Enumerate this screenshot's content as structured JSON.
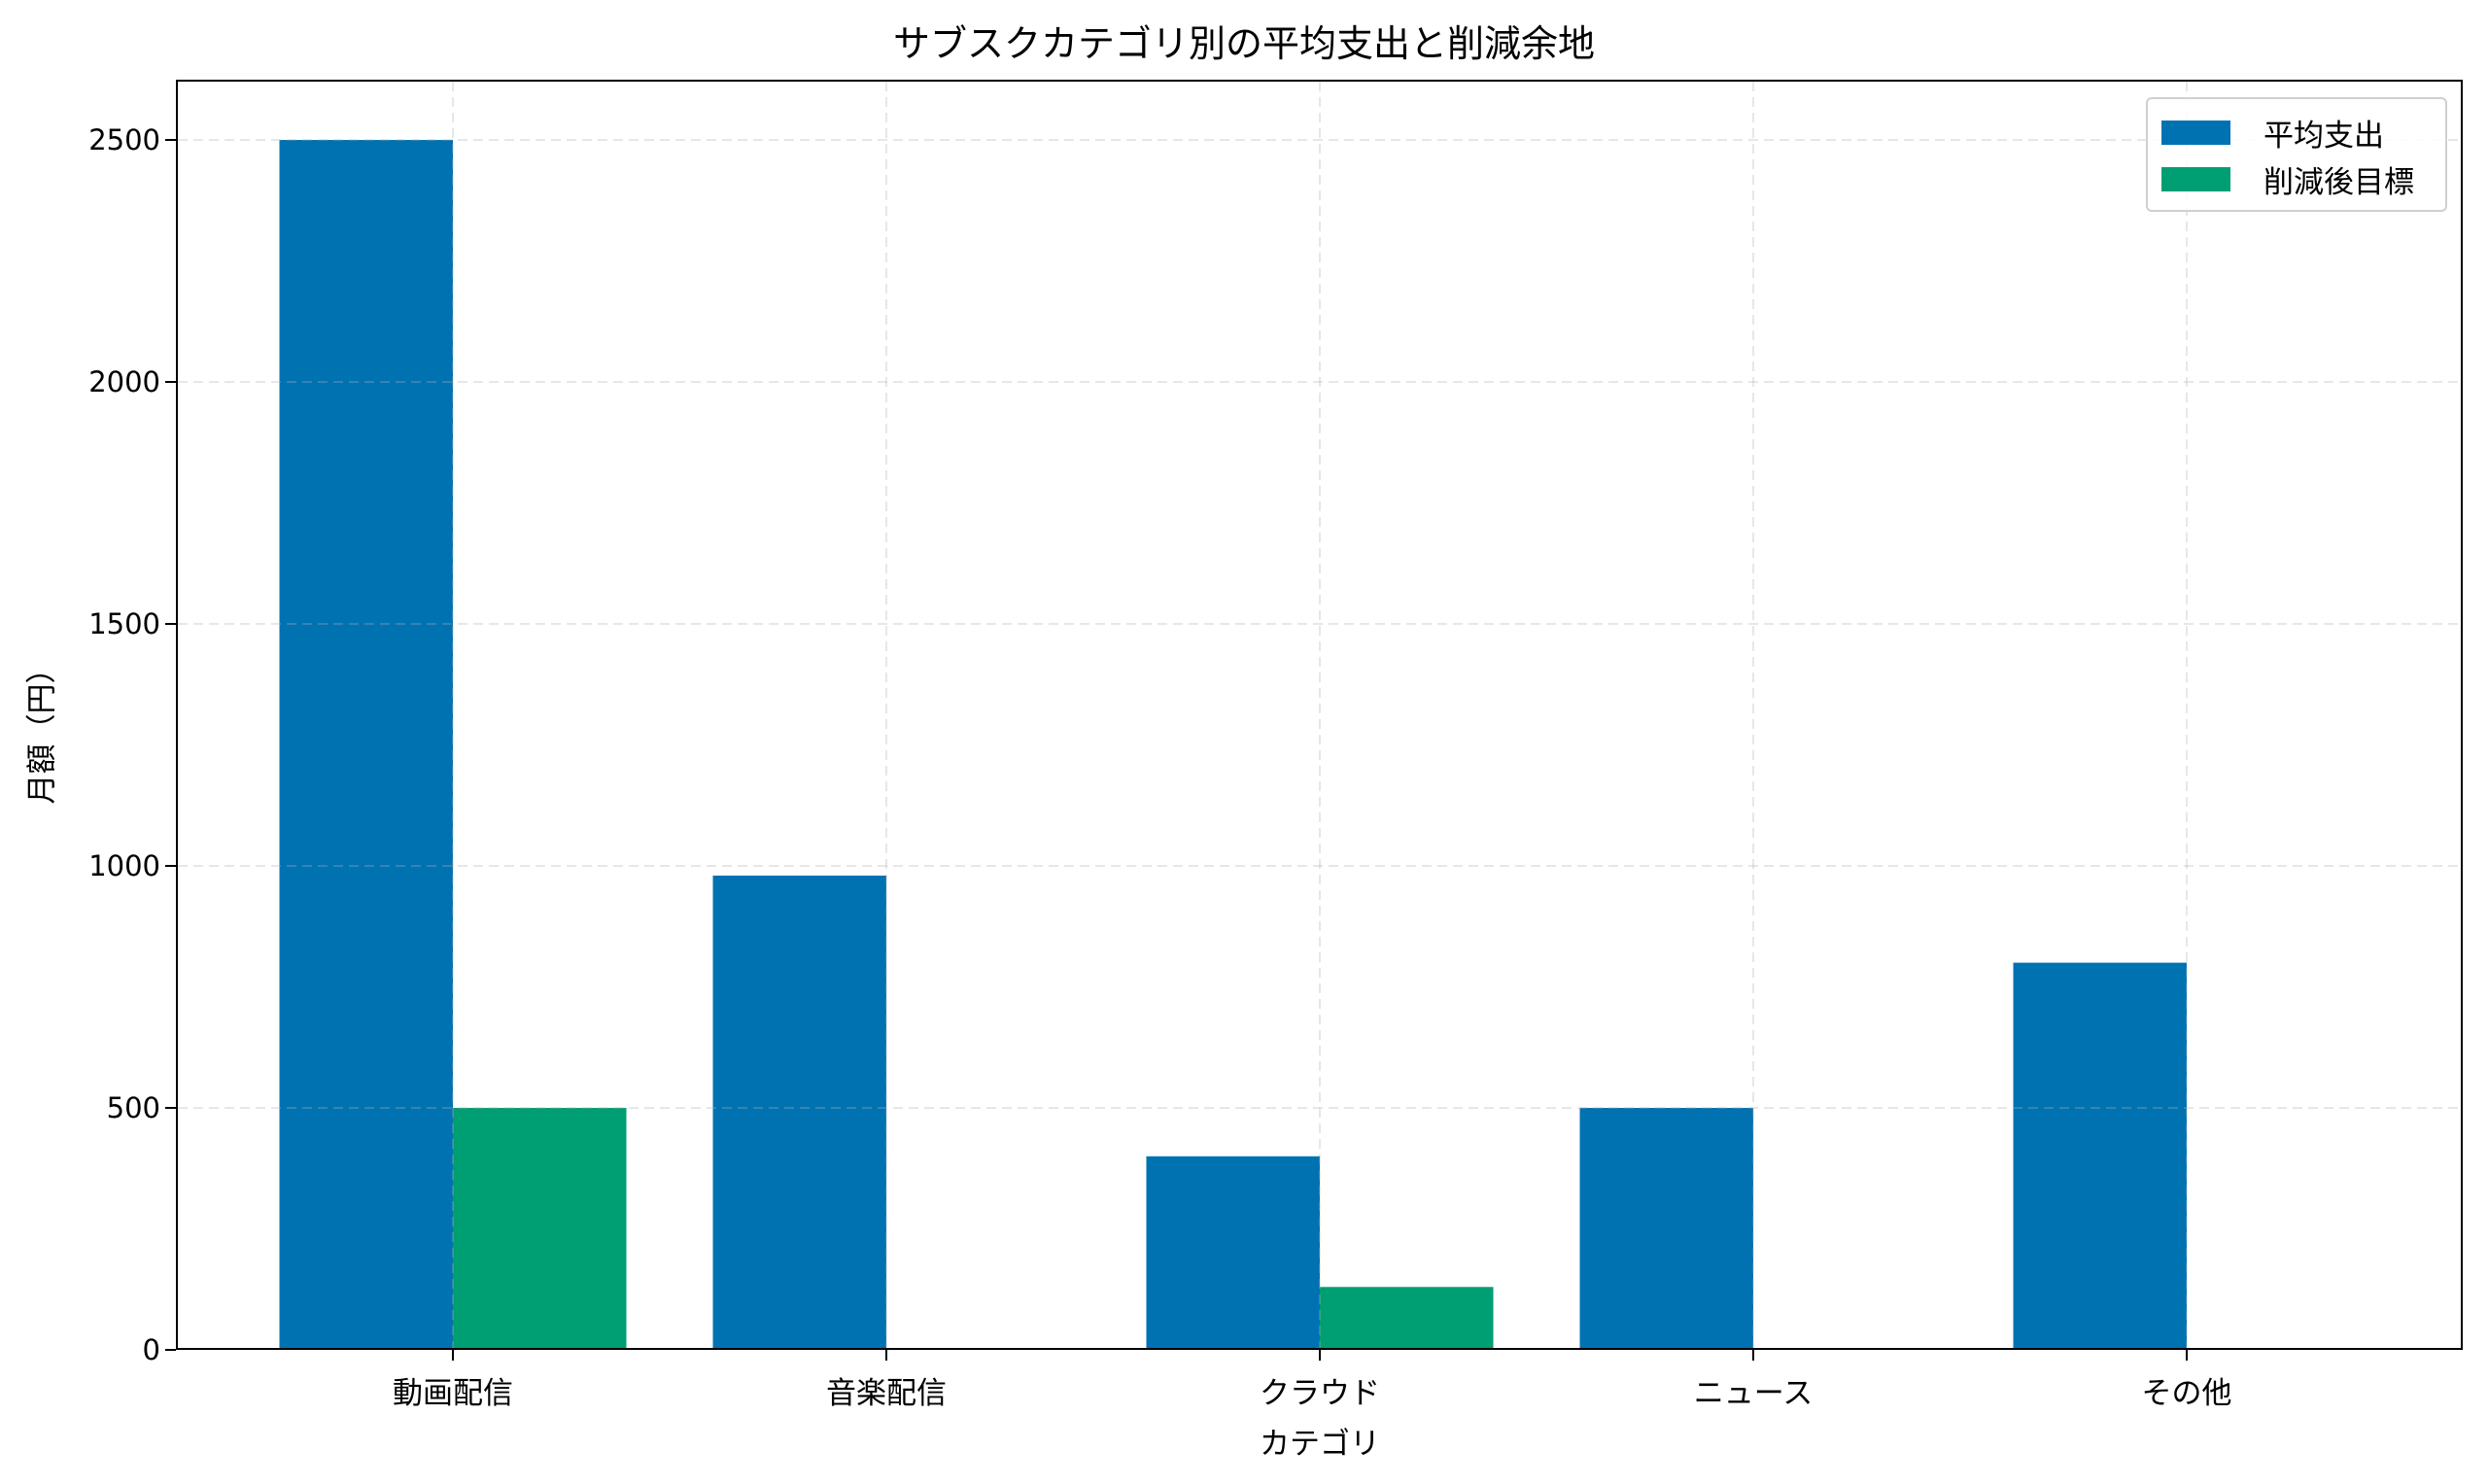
{
  "chart_data": {
    "type": "bar",
    "title": "サブスクカテゴリ別の平均支出と削減余地",
    "xlabel": "カテゴリ",
    "ylabel": "月額（円）",
    "categories": [
      "動画配信",
      "音楽配信",
      "クラウド",
      "ニュース",
      "その他"
    ],
    "series": [
      {
        "name": "平均支出",
        "color": "#0072B2",
        "values": [
          2500,
          980,
          400,
          500,
          800
        ]
      },
      {
        "name": "削減後目標",
        "color": "#009E73",
        "values": [
          500,
          0,
          130,
          0,
          0
        ]
      }
    ],
    "ylim": [
      0,
      2625
    ],
    "yticks": [
      0,
      500,
      1000,
      1500,
      2000,
      2500
    ],
    "ytick_labels": [
      "0",
      "500",
      "1000",
      "1500",
      "2000",
      "2500"
    ],
    "grid": true,
    "grid_style": "dashed light gray, drawn above bars",
    "legend_position": "upper right"
  },
  "legend": {
    "items": [
      {
        "label": "平均支出",
        "color": "#0072B2"
      },
      {
        "label": "削減後目標",
        "color": "#009E73"
      }
    ]
  }
}
